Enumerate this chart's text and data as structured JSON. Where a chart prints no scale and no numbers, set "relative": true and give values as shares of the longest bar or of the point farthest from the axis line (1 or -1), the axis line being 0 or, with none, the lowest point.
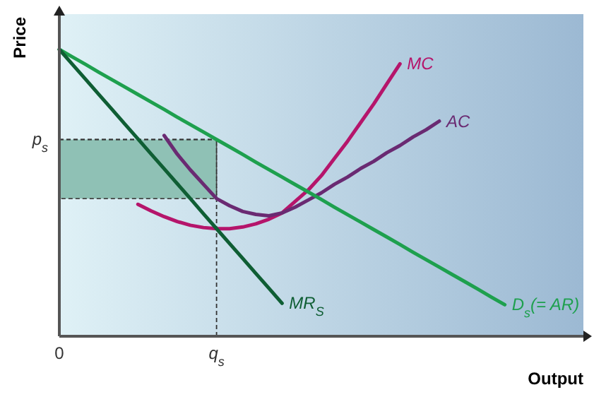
{
  "chart_data": {
    "type": "line",
    "relative": true,
    "xlabel": "Output",
    "ylabel": "Price",
    "legend": false,
    "marker": "none",
    "line_style": "solid",
    "categories": [
      "0",
      null,
      null,
      null,
      null,
      null,
      null,
      null,
      null,
      null,
      null,
      null,
      "q$_{s}$",
      null,
      null,
      null,
      null,
      null,
      null,
      null,
      null,
      null,
      null,
      null,
      null,
      null,
      null,
      null,
      null,
      null,
      null,
      null,
      null,
      null,
      null,
      null,
      null,
      null,
      null,
      null,
      null
    ],
    "series": [
      {
        "name": "MC",
        "color": "#b5156b",
        "values": [
          null,
          null,
          null,
          null,
          null,
          null,
          0.46,
          0.437,
          0.417,
          0.4,
          0.387,
          0.379,
          0.375,
          0.375,
          0.381,
          0.392,
          0.408,
          0.43,
          0.47,
          0.51,
          0.56,
          0.62,
          0.68,
          0.745,
          0.81,
          0.88,
          0.95,
          null,
          null,
          null,
          null,
          null,
          null,
          null,
          null,
          null,
          null,
          null,
          null,
          null,
          null
        ]
      },
      {
        "name": "AC",
        "color": "#6a2a72",
        "values": [
          null,
          null,
          null,
          null,
          null,
          null,
          null,
          null,
          0.7,
          0.635,
          0.58,
          0.53,
          0.48,
          0.455,
          0.435,
          0.425,
          0.42,
          0.43,
          0.45,
          0.475,
          0.5,
          0.53,
          0.555,
          0.585,
          0.61,
          0.64,
          0.665,
          0.695,
          0.72,
          0.75,
          null,
          null,
          null,
          null,
          null,
          null,
          null,
          null,
          null,
          null,
          null
        ]
      },
      {
        "name": "D$_{s}$(= AR)",
        "color": "#1ea04e",
        "values": [
          1,
          0.974,
          0.948,
          0.921,
          0.895,
          0.869,
          0.843,
          0.817,
          0.791,
          0.764,
          0.738,
          0.712,
          0.686,
          0.66,
          0.634,
          0.607,
          0.581,
          0.555,
          0.529,
          0.503,
          0.477,
          0.45,
          0.424,
          0.398,
          0.372,
          0.346,
          0.32,
          0.293,
          0.267,
          0.241,
          0.215,
          0.189,
          0.163,
          0.136,
          0.11,
          null,
          null,
          null,
          null,
          null,
          null
        ]
      },
      {
        "name": "MR$_{S}$",
        "color": "#0f5e34",
        "values": [
          1,
          0.948,
          0.896,
          0.844,
          0.792,
          0.74,
          0.688,
          0.636,
          0.584,
          0.532,
          0.48,
          0.427,
          0.375,
          0.323,
          0.271,
          0.219,
          0.167,
          0.115,
          null,
          null,
          null,
          null,
          null,
          null,
          null,
          null,
          null,
          null,
          null,
          null,
          null,
          null,
          null,
          null,
          null,
          null,
          null,
          null,
          null,
          null,
          null
        ]
      }
    ],
    "ref_lines": [
      {
        "axis": "y",
        "value": 0.686,
        "label": "p$_{s}$",
        "line_style": "dashed"
      }
    ],
    "bands": [
      {
        "axis": "y",
        "from": 0.48,
        "to": 0.686,
        "color": "#8fc1b5"
      }
    ]
  }
}
